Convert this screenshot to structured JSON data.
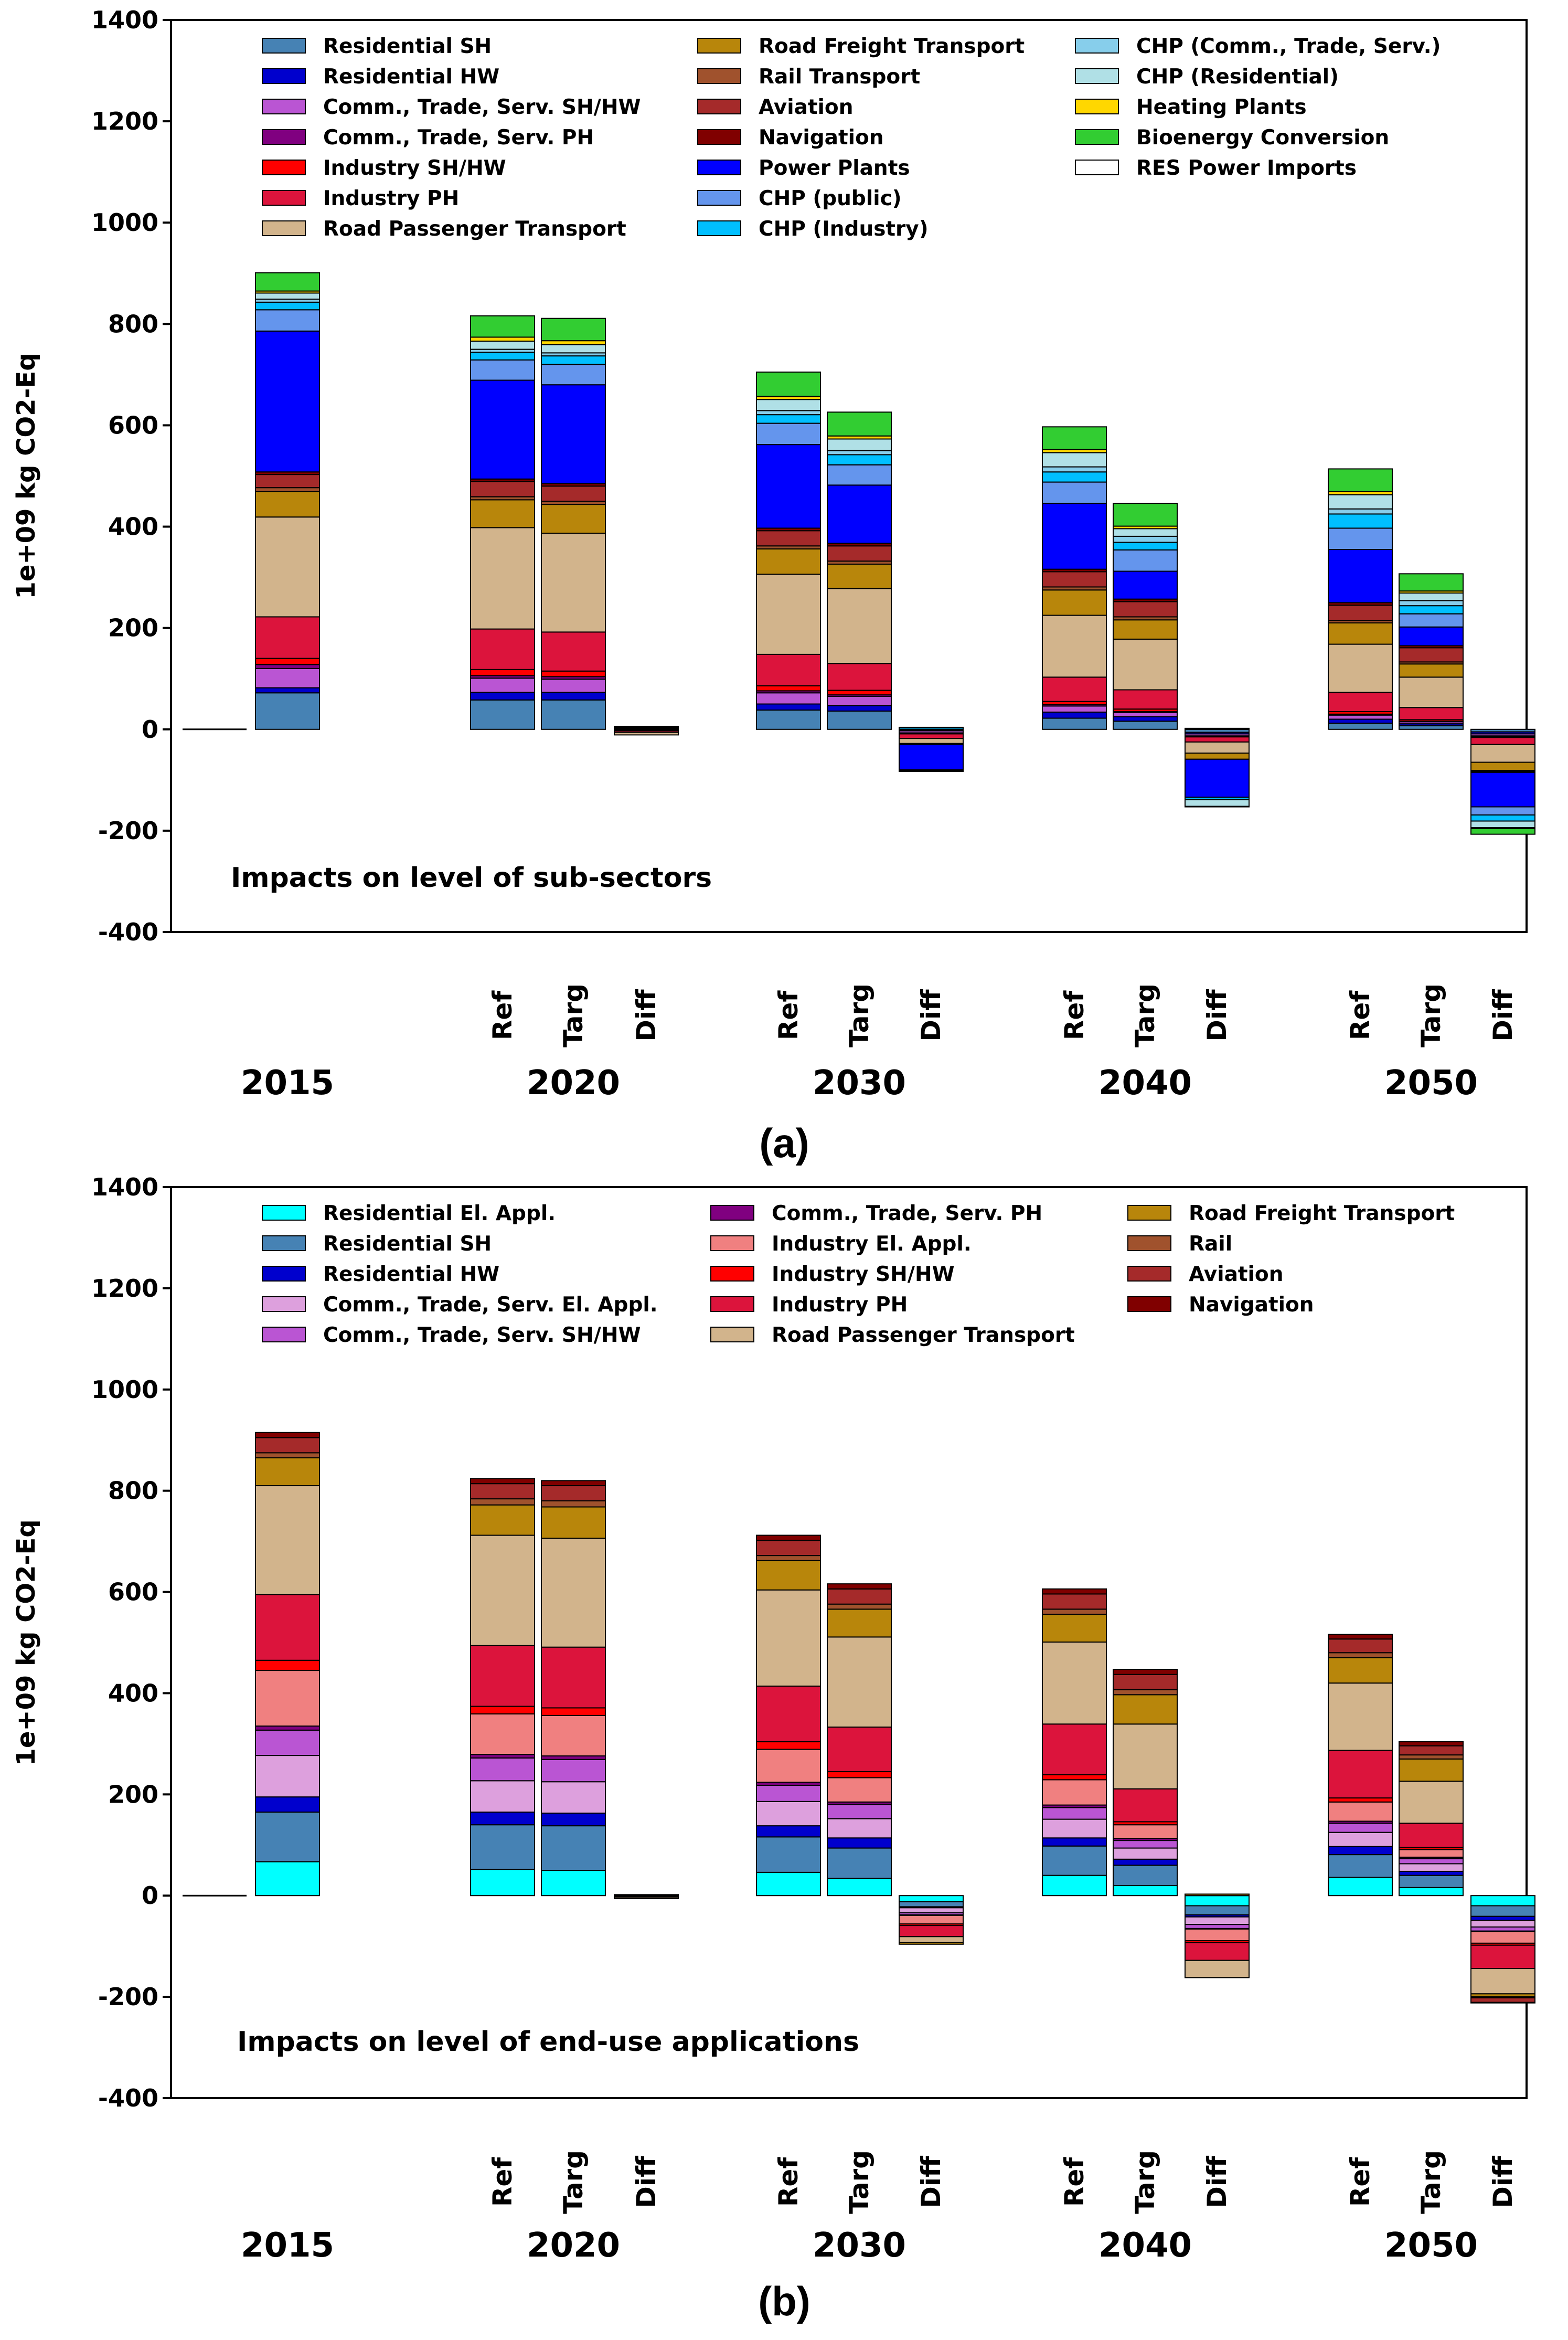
{
  "chart_data": [
    {
      "panel_label": "(a)",
      "type": "bar",
      "stacked": true,
      "ylabel": "1e+09 kg CO2-Eq",
      "ylim": [
        -400,
        1400
      ],
      "yticks": [
        "-400",
        "-200",
        "0",
        "200",
        "400",
        "600",
        "800",
        "1000",
        "1200",
        "1400"
      ],
      "annotation": "Impacts on level of sub-sectors",
      "legend_columns": 3,
      "categories": [
        {
          "name": "Residential SH",
          "color": "#4682b4"
        },
        {
          "name": "Residential HW",
          "color": "#0000cd"
        },
        {
          "name": "Comm., Trade, Serv. SH/HW",
          "color": "#ba55d3"
        },
        {
          "name": "Comm., Trade, Serv. PH",
          "color": "#800080"
        },
        {
          "name": "Industry SH/HW",
          "color": "#ff0000"
        },
        {
          "name": "Industry PH",
          "color": "#dc143c"
        },
        {
          "name": "Road Passenger Transport",
          "color": "#d2b48c"
        },
        {
          "name": "Road Freight Transport",
          "color": "#b8860b"
        },
        {
          "name": "Rail Transport",
          "color": "#a0522d"
        },
        {
          "name": "Aviation",
          "color": "#a52a2a"
        },
        {
          "name": "Navigation",
          "color": "#800000"
        },
        {
          "name": "Power Plants",
          "color": "#0000ff"
        },
        {
          "name": "CHP (public)",
          "color": "#6495ed"
        },
        {
          "name": "CHP (Industry)",
          "color": "#00bfff"
        },
        {
          "name": "CHP (Comm., Trade, Serv.)",
          "color": "#87ceeb"
        },
        {
          "name": "CHP (Residential)",
          "color": "#b0e0e6"
        },
        {
          "name": "Heating Plants",
          "color": "#ffd700"
        },
        {
          "name": "Bioenergy Conversion",
          "color": "#32cd32"
        },
        {
          "name": "RES Power Imports",
          "color": "#ffffff"
        }
      ],
      "groups": [
        {
          "year": "2015",
          "bars": [
            {
              "label": "",
              "values": [
                72,
                10,
                38,
                8,
                12,
                82,
                197,
                50,
                8,
                26,
                5,
                278,
                42,
                15,
                6,
                12,
                4,
                36,
                0
              ]
            }
          ]
        },
        {
          "year": "2020",
          "bars": [
            {
              "label": "Ref",
              "values": [
                58,
                15,
                28,
                5,
                12,
                80,
                200,
                55,
                6,
                30,
                5,
                195,
                40,
                15,
                6,
                16,
                8,
                42,
                0
              ]
            },
            {
              "label": "Targ",
              "values": [
                58,
                15,
                26,
                5,
                11,
                77,
                195,
                57,
                6,
                30,
                5,
                195,
                40,
                17,
                6,
                16,
                8,
                44,
                0
              ]
            },
            {
              "label": "Diff",
              "values": [
                0,
                0,
                -2,
                0,
                -1,
                -3,
                -5,
                2,
                0,
                0,
                0,
                0,
                0,
                2,
                0,
                0,
                0,
                2,
                0
              ]
            }
          ]
        },
        {
          "year": "2030",
          "bars": [
            {
              "label": "Ref",
              "values": [
                38,
                12,
                22,
                4,
                10,
                62,
                158,
                50,
                6,
                30,
                5,
                165,
                42,
                17,
                8,
                22,
                6,
                48,
                0
              ]
            },
            {
              "label": "Targ",
              "values": [
                36,
                11,
                18,
                3,
                9,
                53,
                148,
                48,
                6,
                30,
                5,
                115,
                40,
                20,
                8,
                23,
                6,
                47,
                0
              ]
            },
            {
              "label": "Diff",
              "values": [
                -2,
                -1,
                -4,
                -1,
                -1,
                -9,
                -10,
                -2,
                0,
                0,
                0,
                -50,
                -2,
                3,
                0,
                1,
                0,
                -1,
                0
              ]
            }
          ]
        },
        {
          "year": "2040",
          "bars": [
            {
              "label": "Ref",
              "values": [
                22,
                12,
                12,
                3,
                6,
                48,
                122,
                50,
                6,
                30,
                5,
                130,
                42,
                20,
                10,
                28,
                6,
                45,
                0
              ]
            },
            {
              "label": "Targ",
              "values": [
                16,
                9,
                8,
                2,
                5,
                38,
                100,
                38,
                6,
                30,
                5,
                55,
                42,
                15,
                12,
                15,
                5,
                45,
                0
              ]
            },
            {
              "label": "Diff",
              "values": [
                -6,
                -3,
                -4,
                -1,
                -1,
                -10,
                -22,
                -12,
                0,
                0,
                0,
                -75,
                0,
                -5,
                2,
                -13,
                -1,
                0,
                0
              ]
            }
          ]
        },
        {
          "year": "2050",
          "bars": [
            {
              "label": "Ref",
              "values": [
                12,
                8,
                8,
                2,
                5,
                38,
                95,
                42,
                5,
                30,
                5,
                105,
                42,
                28,
                10,
                28,
                6,
                45,
                0
              ]
            },
            {
              "label": "Targ",
              "values": [
                7,
                4,
                4,
                1,
                3,
                24,
                60,
                26,
                4,
                28,
                4,
                37,
                26,
                16,
                10,
                15,
                4,
                34,
                0
              ]
            },
            {
              "label": "Diff",
              "values": [
                -5,
                -4,
                -4,
                -1,
                -2,
                -14,
                -35,
                -16,
                -1,
                -2,
                -1,
                -68,
                -16,
                -12,
                0,
                -13,
                -2,
                -11,
                0
              ]
            }
          ]
        }
      ]
    },
    {
      "panel_label": "(b)",
      "type": "bar",
      "stacked": true,
      "ylabel": "1e+09 kg CO2-Eq",
      "ylim": [
        -400,
        1400
      ],
      "yticks": [
        "-400",
        "-200",
        "0",
        "200",
        "400",
        "600",
        "800",
        "1000",
        "1200",
        "1400"
      ],
      "annotation": "Impacts on level of end-use applications",
      "legend_columns": 3,
      "categories": [
        {
          "name": "Residential El. Appl.",
          "color": "#00ffff"
        },
        {
          "name": "Residential SH",
          "color": "#4682b4"
        },
        {
          "name": "Residential HW",
          "color": "#0000cd"
        },
        {
          "name": "Comm., Trade, Serv. El. Appl.",
          "color": "#dda0dd"
        },
        {
          "name": "Comm., Trade, Serv. SH/HW",
          "color": "#ba55d3"
        },
        {
          "name": "Comm., Trade, Serv.  PH",
          "color": "#800080"
        },
        {
          "name": "Industry El. Appl.",
          "color": "#f08080"
        },
        {
          "name": "Industry SH/HW",
          "color": "#ff0000"
        },
        {
          "name": "Industry PH",
          "color": "#dc143c"
        },
        {
          "name": "Road Passenger Transport",
          "color": "#d2b48c"
        },
        {
          "name": "Road Freight Transport",
          "color": "#b8860b"
        },
        {
          "name": "Rail",
          "color": "#a0522d"
        },
        {
          "name": "Aviation",
          "color": "#a52a2a"
        },
        {
          "name": "Navigation",
          "color": "#800000"
        }
      ],
      "groups": [
        {
          "year": "2015",
          "bars": [
            {
              "label": "",
              "values": [
                67,
                98,
                30,
                82,
                50,
                8,
                110,
                20,
                130,
                215,
                55,
                10,
                30,
                10
              ]
            }
          ]
        },
        {
          "year": "2020",
          "bars": [
            {
              "label": "Ref",
              "values": [
                52,
                88,
                25,
                62,
                45,
                7,
                80,
                15,
                120,
                218,
                60,
                12,
                30,
                10
              ]
            },
            {
              "label": "Targ",
              "values": [
                50,
                88,
                25,
                62,
                44,
                7,
                80,
                15,
                120,
                215,
                62,
                12,
                30,
                10
              ]
            },
            {
              "label": "Diff",
              "values": [
                -2,
                0,
                0,
                0,
                -1,
                0,
                0,
                0,
                0,
                -3,
                2,
                0,
                0,
                0
              ]
            }
          ]
        },
        {
          "year": "2030",
          "bars": [
            {
              "label": "Ref",
              "values": [
                46,
                70,
                22,
                48,
                32,
                6,
                65,
                15,
                110,
                190,
                58,
                10,
                30,
                10
              ]
            },
            {
              "label": "Targ",
              "values": [
                34,
                60,
                20,
                38,
                28,
                5,
                48,
                12,
                88,
                178,
                55,
                10,
                30,
                10
              ]
            },
            {
              "label": "Diff",
              "values": [
                -12,
                -10,
                -2,
                -10,
                -4,
                -1,
                -17,
                -3,
                -22,
                -12,
                -3,
                0,
                0,
                0
              ]
            }
          ]
        },
        {
          "year": "2040",
          "bars": [
            {
              "label": "Ref",
              "values": [
                40,
                58,
                16,
                37,
                23,
                5,
                50,
                10,
                100,
                162,
                55,
                10,
                30,
                10
              ]
            },
            {
              "label": "Targ",
              "values": [
                20,
                40,
                12,
                22,
                15,
                4,
                27,
                6,
                65,
                128,
                58,
                10,
                30,
                10
              ]
            },
            {
              "label": "Diff",
              "values": [
                -20,
                -18,
                -4,
                -15,
                -8,
                -1,
                -23,
                -4,
                -35,
                -34,
                3,
                0,
                0,
                0
              ]
            }
          ]
        },
        {
          "year": "2050",
          "bars": [
            {
              "label": "Ref",
              "values": [
                36,
                45,
                16,
                28,
                18,
                4,
                38,
                8,
                94,
                133,
                50,
                10,
                27,
                9
              ]
            },
            {
              "label": "Targ",
              "values": [
                16,
                24,
                8,
                15,
                10,
                3,
                15,
                4,
                48,
                83,
                44,
                8,
                18,
                8
              ]
            },
            {
              "label": "Diff",
              "values": [
                -20,
                -21,
                -8,
                -13,
                -8,
                -1,
                -23,
                -4,
                -46,
                -50,
                -6,
                -2,
                -9,
                -1
              ]
            }
          ]
        }
      ]
    }
  ]
}
